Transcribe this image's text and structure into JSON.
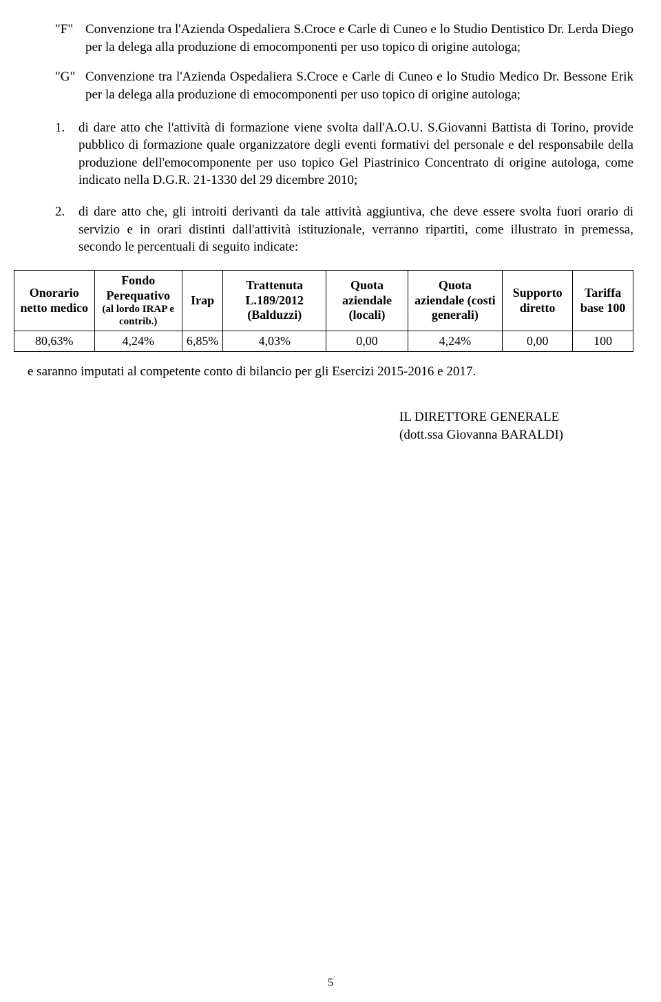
{
  "lettered": [
    {
      "marker": "\"F\"",
      "text": "Convenzione tra l'Azienda Ospedaliera S.Croce e Carle di Cuneo e lo Studio Dentistico Dr. Lerda Diego per la delega alla produzione di emocomponenti per uso topico di origine autologa;"
    },
    {
      "marker": "\"G\"",
      "text": "Convenzione tra l'Azienda Ospedaliera S.Croce e Carle di Cuneo e lo Studio Medico Dr. Bessone Erik per la delega alla produzione di emocomponenti per uso topico di origine autologa;"
    }
  ],
  "numbered": [
    {
      "marker": "1.",
      "text": "di dare atto che l'attività di formazione viene svolta dall'A.O.U. S.Giovanni Battista di Torino, provide pubblico di formazione quale organizzatore degli eventi formativi del personale e del responsabile della produzione dell'emocomponente per uso topico Gel Piastrinico Concentrato di origine autologa, come indicato nella D.G.R. 21-1330 del 29 dicembre 2010;"
    },
    {
      "marker": "2.",
      "text": "di dare atto che, gli introiti derivanti da tale attività aggiuntiva, che deve essere svolta fuori orario di servizio e in orari distinti dall'attività istituzionale, verranno ripartiti, come illustrato in premessa, secondo le percentuali di seguito indicate:"
    }
  ],
  "table": {
    "headers": [
      {
        "main": "Onorario netto medico",
        "sub": ""
      },
      {
        "main": "Fondo Perequativo",
        "sub": "(al lordo IRAP e contrib.)"
      },
      {
        "main": "Irap",
        "sub": ""
      },
      {
        "main": "Trattenuta L.189/2012 (Balduzzi)",
        "sub": ""
      },
      {
        "main": "Quota aziendale (locali)",
        "sub": ""
      },
      {
        "main": "Quota aziendale (costi generali)",
        "sub": ""
      },
      {
        "main": "Supporto diretto",
        "sub": ""
      },
      {
        "main": "Tariffa base 100",
        "sub": ""
      }
    ],
    "row": [
      "80,63%",
      "4,24%",
      "6,85%",
      "4,03%",
      "0,00",
      "4,24%",
      "0,00",
      "100"
    ]
  },
  "post_table": "e saranno imputati al competente conto di bilancio per gli Esercizi 2015-2016 e 2017.",
  "signature": {
    "title": "IL DIRETTORE GENERALE",
    "name": "(dott.ssa Giovanna BARALDI)"
  },
  "page_num": "5"
}
